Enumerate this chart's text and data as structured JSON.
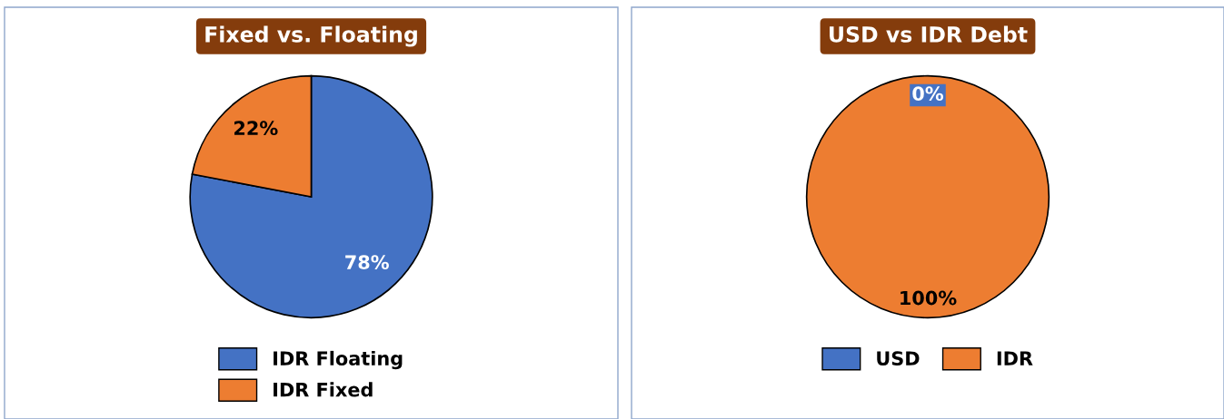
{
  "chart_data": [
    {
      "type": "pie",
      "title": "Fixed vs. Floating",
      "categories": [
        "IDR Floating",
        "IDR Fixed"
      ],
      "values": [
        78,
        22
      ],
      "colors": [
        "#4472c4",
        "#ed7d31"
      ],
      "value_labels": [
        "78%",
        "22%"
      ],
      "legend": "bottom"
    },
    {
      "type": "pie",
      "title": "USD vs IDR Debt",
      "categories": [
        "USD",
        "IDR"
      ],
      "values": [
        0,
        100
      ],
      "colors": [
        "#4472c4",
        "#ed7d31"
      ],
      "value_labels": [
        "0%",
        "100%"
      ],
      "legend": "bottom"
    }
  ]
}
